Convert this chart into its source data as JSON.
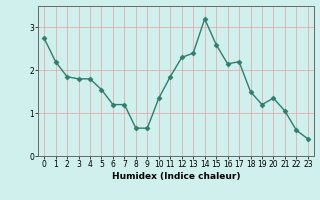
{
  "x": [
    0,
    1,
    2,
    3,
    4,
    5,
    6,
    7,
    8,
    9,
    10,
    11,
    12,
    13,
    14,
    15,
    16,
    17,
    18,
    19,
    20,
    21,
    22,
    23
  ],
  "y": [
    2.75,
    2.2,
    1.85,
    1.8,
    1.8,
    1.55,
    1.2,
    1.2,
    0.65,
    0.65,
    1.35,
    1.85,
    2.3,
    2.4,
    3.2,
    2.6,
    2.15,
    2.2,
    1.5,
    1.2,
    1.35,
    1.05,
    0.6,
    0.4
  ],
  "line_color": "#2e7d6e",
  "marker": "D",
  "marker_size": 2.5,
  "xlabel": "Humidex (Indice chaleur)",
  "ylim": [
    0,
    3.5
  ],
  "xlim": [
    -0.5,
    23.5
  ],
  "yticks": [
    0,
    1,
    2,
    3
  ],
  "xticks": [
    0,
    1,
    2,
    3,
    4,
    5,
    6,
    7,
    8,
    9,
    10,
    11,
    12,
    13,
    14,
    15,
    16,
    17,
    18,
    19,
    20,
    21,
    22,
    23
  ],
  "bg_color": "#cff0ec",
  "grid_color": "#e8a0a0",
  "fig_bg": "#cff0ec"
}
